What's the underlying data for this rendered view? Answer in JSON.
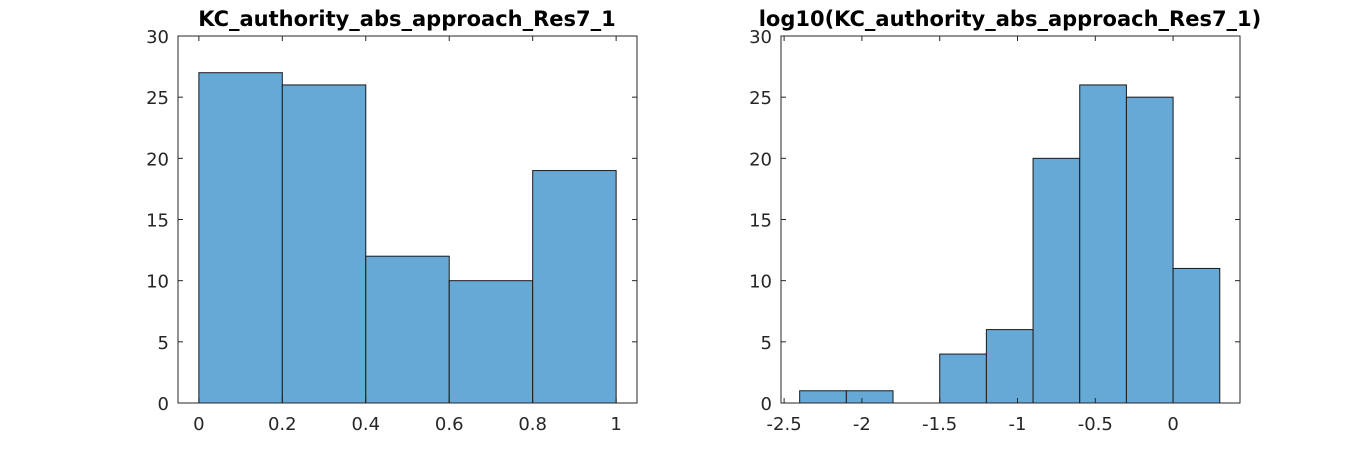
{
  "chart_data": [
    {
      "type": "bar",
      "title": "KC_authority_abs_approach_Res7_1",
      "bin_edges": [
        0,
        0.2,
        0.4,
        0.6,
        0.8,
        1.0
      ],
      "values": [
        27,
        26,
        12,
        10,
        19
      ],
      "xlim": [
        -0.05,
        1.05
      ],
      "ylim": [
        0,
        30
      ],
      "xticks": [
        0,
        0.2,
        0.4,
        0.6,
        0.8,
        1
      ],
      "xtick_labels": [
        "0",
        "0.2",
        "0.4",
        "0.6",
        "0.8",
        "1"
      ],
      "yticks": [
        0,
        5,
        10,
        15,
        20,
        25,
        30
      ],
      "ytick_labels": [
        "0",
        "5",
        "10",
        "15",
        "20",
        "25",
        "30"
      ],
      "bar_color": "#66a9d6",
      "grid": false
    },
    {
      "type": "bar",
      "title": "log10(KC_authority_abs_approach_Res7_1)",
      "bin_edges": [
        -2.4,
        -2.1,
        -1.8,
        -1.5,
        -1.2,
        -0.9,
        -0.6,
        -0.3,
        0.0,
        0.3
      ],
      "values": [
        1,
        1,
        0,
        4,
        6,
        20,
        26,
        25,
        11
      ],
      "xlim": [
        -2.52,
        0.43
      ],
      "ylim": [
        0,
        30
      ],
      "xticks": [
        -2.5,
        -2,
        -1.5,
        -1,
        -0.5,
        0
      ],
      "xtick_labels": [
        "-2.5",
        "-2",
        "-1.5",
        "-1",
        "-0.5",
        "0"
      ],
      "yticks": [
        0,
        5,
        10,
        15,
        20,
        25,
        30
      ],
      "ytick_labels": [
        "0",
        "5",
        "10",
        "15",
        "20",
        "25",
        "30"
      ],
      "bar_color": "#66a9d6",
      "grid": false
    }
  ]
}
